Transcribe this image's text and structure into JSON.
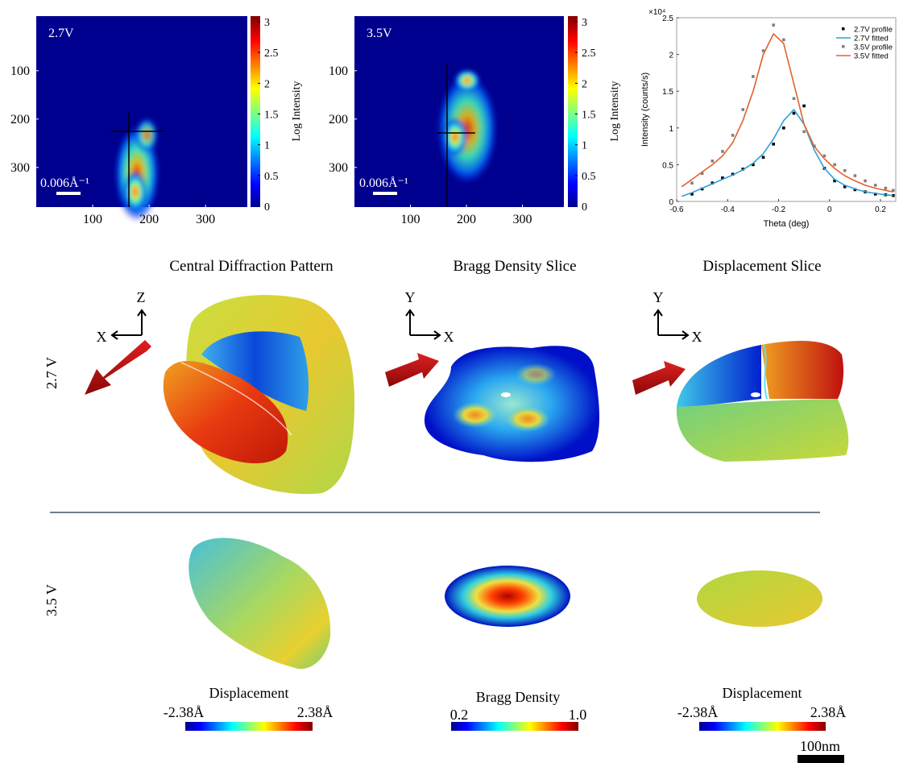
{
  "heatmaps": [
    {
      "label": "2.7V",
      "scale_bar": "0.006Å⁻¹",
      "xlim": [
        0,
        374
      ],
      "ylim": [
        -13,
        382
      ],
      "xticks": [
        100,
        200,
        300
      ],
      "yticks": [
        100,
        200,
        300
      ],
      "colorbar": {
        "label": "Log Intensity",
        "lim": [
          0,
          3
        ],
        "ticks": [
          0,
          0.5,
          1,
          1.5,
          2,
          2.5,
          3
        ]
      }
    },
    {
      "label": "3.5V",
      "scale_bar": "0.006Å⁻¹",
      "xlim": [
        0,
        374
      ],
      "ylim": [
        -13,
        382
      ],
      "xticks": [
        100,
        200,
        300
      ],
      "yticks": [
        100,
        200,
        300
      ],
      "colorbar": {
        "label": "Log Intensity",
        "lim": [
          0,
          3
        ],
        "ticks": [
          0,
          0.5,
          1,
          1.5,
          2,
          2.5,
          3
        ]
      }
    }
  ],
  "chart_data": {
    "type": "line",
    "y_multiplier": "×10⁴",
    "x_label": "Theta (deg)",
    "y_label": "Intensity (counts/s)",
    "xlim": [
      -0.6,
      0.26
    ],
    "ylim": [
      0,
      2.5
    ],
    "xticks": [
      -0.6,
      -0.4,
      -0.2,
      0,
      0.2
    ],
    "yticks": [
      0,
      0.5,
      1,
      1.5,
      2,
      2.5
    ],
    "legend": "upper right",
    "x": [
      -0.58,
      -0.54,
      -0.5,
      -0.46,
      -0.42,
      -0.38,
      -0.34,
      -0.3,
      -0.26,
      -0.22,
      -0.18,
      -0.14,
      -0.1,
      -0.06,
      -0.02,
      0.02,
      0.06,
      0.1,
      0.14,
      0.18,
      0.22,
      0.25
    ],
    "series": [
      {
        "name": "2.7V profile",
        "color": "#000000",
        "marker": "dot",
        "values": [
          null,
          0.1,
          0.17,
          0.25,
          0.32,
          0.37,
          0.44,
          0.5,
          0.6,
          0.78,
          1.0,
          1.2,
          1.3,
          0.75,
          0.45,
          0.28,
          0.2,
          0.16,
          0.13,
          0.1,
          0.09,
          0.08
        ]
      },
      {
        "name": "2.7V fitted",
        "color": "#2c9fd8",
        "marker": "line",
        "values": [
          0.07,
          0.12,
          0.18,
          0.24,
          0.3,
          0.36,
          0.43,
          0.52,
          0.65,
          0.85,
          1.1,
          1.25,
          1.05,
          0.7,
          0.45,
          0.3,
          0.22,
          0.17,
          0.13,
          0.11,
          0.09,
          0.08
        ]
      },
      {
        "name": "3.5V profile",
        "color": "#808080",
        "marker": "dot",
        "values": [
          null,
          0.25,
          0.38,
          0.55,
          0.68,
          0.9,
          1.25,
          1.7,
          2.05,
          2.4,
          2.2,
          1.4,
          0.95,
          0.75,
          0.62,
          0.5,
          0.42,
          0.35,
          0.28,
          0.22,
          0.18,
          0.15
        ]
      },
      {
        "name": "3.5V fitted",
        "color": "#e0622a",
        "marker": "line",
        "values": [
          0.2,
          0.3,
          0.4,
          0.5,
          0.62,
          0.8,
          1.1,
          1.5,
          2.0,
          2.28,
          2.15,
          1.6,
          1.05,
          0.75,
          0.58,
          0.45,
          0.35,
          0.28,
          0.22,
          0.18,
          0.15,
          0.13
        ]
      }
    ]
  },
  "columns": [
    "Central Diffraction Pattern",
    "Bragg Density Slice",
    "Displacement Slice"
  ],
  "rows": [
    "2.7 V",
    "3.5 V"
  ],
  "axes_labels": [
    [
      "Z",
      "X"
    ],
    [
      "Y",
      "X"
    ],
    [
      "Y",
      "X"
    ]
  ],
  "colorbars": [
    {
      "title": "Displacement",
      "min": "-2.38Å",
      "max": "2.38Å"
    },
    {
      "title": "Bragg Density",
      "min": "0.2",
      "max": "1.0"
    },
    {
      "title": "Displacement",
      "min": "-2.38Å",
      "max": "2.38Å"
    }
  ],
  "scale_bar": "100nm"
}
